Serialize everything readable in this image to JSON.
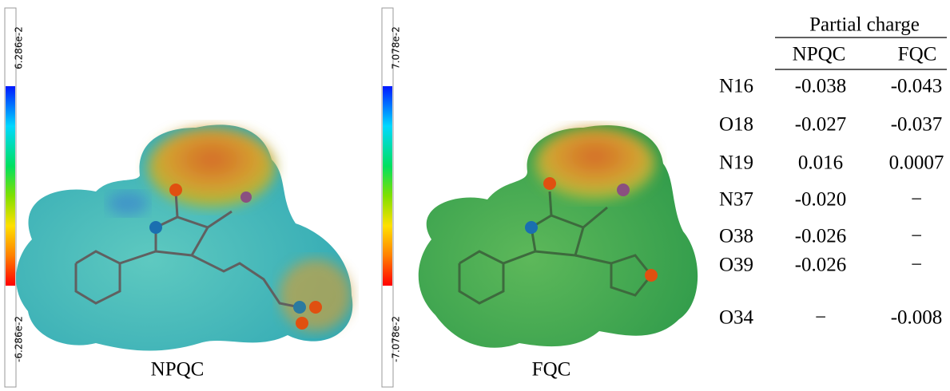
{
  "panels": [
    {
      "scale_max": "6.286e-2",
      "scale_min": "-6.286e-2",
      "caption": "NPQC"
    },
    {
      "scale_max": "7.078e-2",
      "scale_min": "-7.078e-2",
      "caption": "FQC"
    }
  ],
  "table": {
    "title": "Partial charge",
    "columns": [
      "NPQC",
      "FQC"
    ],
    "rows": [
      [
        "N16",
        "-0.038",
        "-0.043"
      ],
      [
        "O18",
        "-0.027",
        "-0.037"
      ],
      [
        "N19",
        "0.016",
        "0.0007"
      ],
      [
        "N37",
        "-0.020",
        "−"
      ],
      [
        "O38",
        "-0.026",
        "−"
      ],
      [
        "O39",
        "-0.026",
        "−"
      ],
      [
        "O34",
        "−",
        "-0.008"
      ]
    ]
  }
}
